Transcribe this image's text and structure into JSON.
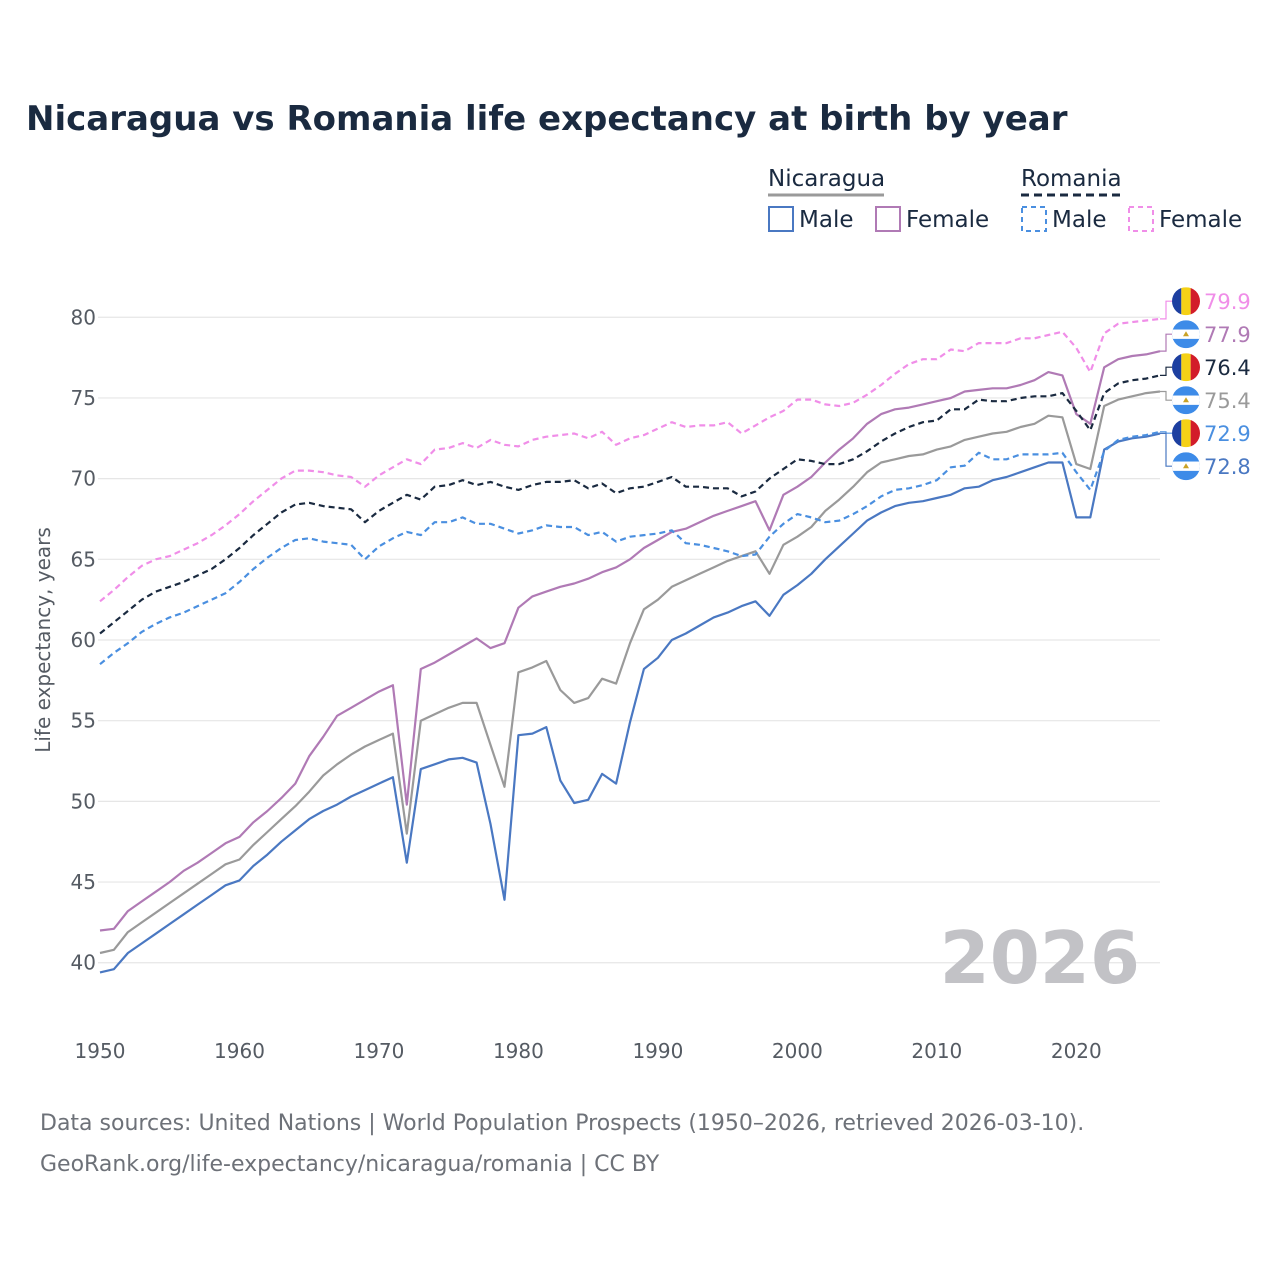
{
  "page_title": "Nicaragua vs Romania life expectancy at birth by year",
  "year_overlay": "2026",
  "footer": {
    "line1": "Data sources: United Nations | World Population Prospects (1950–2026, retrieved 2026-03-10).",
    "line2": "GeoRank.org/life-expectancy/nicaragua/romania | CC BY"
  },
  "legend": {
    "nicaragua_label": "Nicaragua",
    "romania_label": "Romania",
    "male_label": "Male",
    "female_label": "Female"
  },
  "colors": {
    "title": "#1a2a40",
    "nic_total": "#9a9a9a",
    "nic_male": "#4a78c2",
    "nic_female": "#b07ab5",
    "rom_total": "#1a2a40",
    "rom_male": "#4a8fe0",
    "rom_female": "#f08ee8",
    "grid": "#e6e6e6",
    "flag_romania": [
      "#1d3fa0",
      "#f5d116",
      "#d21c2a"
    ],
    "flag_nicaragua": [
      "#3d8be8",
      "#ffffff"
    ]
  },
  "chart_data": {
    "type": "line",
    "title": "Nicaragua vs Romania life expectancy at birth by year",
    "xlabel": "",
    "ylabel": "Life expectancy, years",
    "xlim": [
      1950,
      2026
    ],
    "ylim": [
      38,
      82
    ],
    "xticks": [
      1950,
      1960,
      1970,
      1980,
      1990,
      2000,
      2010,
      2020
    ],
    "yticks": [
      40,
      45,
      50,
      55,
      60,
      65,
      70,
      75,
      80
    ],
    "grid": true,
    "legend_position": "top-right",
    "x": [
      1950,
      1951,
      1952,
      1953,
      1954,
      1955,
      1956,
      1957,
      1958,
      1959,
      1960,
      1961,
      1962,
      1963,
      1964,
      1965,
      1966,
      1967,
      1968,
      1969,
      1970,
      1971,
      1972,
      1973,
      1974,
      1975,
      1976,
      1977,
      1978,
      1979,
      1980,
      1981,
      1982,
      1983,
      1984,
      1985,
      1986,
      1987,
      1988,
      1989,
      1990,
      1991,
      1992,
      1993,
      1994,
      1995,
      1996,
      1997,
      1998,
      1999,
      2000,
      2001,
      2002,
      2003,
      2004,
      2005,
      2006,
      2007,
      2008,
      2009,
      2010,
      2011,
      2012,
      2013,
      2014,
      2015,
      2016,
      2017,
      2018,
      2019,
      2020,
      2021,
      2022,
      2023,
      2024,
      2025,
      2026
    ],
    "series": [
      {
        "name": "Romania Female",
        "country": "Romania",
        "sex": "Female",
        "style": "dashed",
        "color": "#f08ee8",
        "end_label": "79.9",
        "flag": "romania",
        "values": [
          62.4,
          63.1,
          63.9,
          64.6,
          65.0,
          65.2,
          65.6,
          66.0,
          66.5,
          67.1,
          67.8,
          68.6,
          69.3,
          70.0,
          70.5,
          70.5,
          70.4,
          70.2,
          70.1,
          69.5,
          70.2,
          70.7,
          71.2,
          70.9,
          71.8,
          71.9,
          72.2,
          71.9,
          72.4,
          72.1,
          72.0,
          72.4,
          72.6,
          72.7,
          72.8,
          72.5,
          72.9,
          72.1,
          72.5,
          72.7,
          73.1,
          73.5,
          73.2,
          73.3,
          73.3,
          73.5,
          72.8,
          73.3,
          73.8,
          74.2,
          74.9,
          74.9,
          74.6,
          74.5,
          74.7,
          75.2,
          75.8,
          76.5,
          77.1,
          77.4,
          77.4,
          78.0,
          77.9,
          78.4,
          78.4,
          78.4,
          78.7,
          78.7,
          78.9,
          79.1,
          78.1,
          76.6,
          79.0,
          79.6,
          79.7,
          79.8,
          79.9
        ]
      },
      {
        "name": "Nicaragua Female",
        "country": "Nicaragua",
        "sex": "Female",
        "style": "solid",
        "color": "#b07ab5",
        "end_label": "77.9",
        "flag": "nicaragua",
        "values": [
          42.0,
          42.1,
          43.2,
          43.8,
          44.4,
          45.0,
          45.7,
          46.2,
          46.8,
          47.4,
          47.8,
          48.7,
          49.4,
          50.2,
          51.1,
          52.8,
          54.0,
          55.3,
          55.8,
          56.3,
          56.8,
          57.2,
          49.8,
          58.2,
          58.6,
          59.1,
          59.6,
          60.1,
          59.5,
          59.8,
          62.0,
          62.7,
          63.0,
          63.3,
          63.5,
          63.8,
          64.2,
          64.5,
          65.0,
          65.7,
          66.2,
          66.7,
          66.9,
          67.3,
          67.7,
          68.0,
          68.3,
          68.6,
          66.8,
          69.0,
          69.5,
          70.1,
          71.0,
          71.8,
          72.5,
          73.4,
          74.0,
          74.3,
          74.4,
          74.6,
          74.8,
          75.0,
          75.4,
          75.5,
          75.6,
          75.6,
          75.8,
          76.1,
          76.6,
          76.4,
          74.0,
          73.4,
          76.9,
          77.4,
          77.6,
          77.7,
          77.9
        ]
      },
      {
        "name": "Romania",
        "country": "Romania",
        "sex": "Total",
        "style": "dashed",
        "color": "#1a2a40",
        "end_label": "76.4",
        "flag": "romania",
        "values": [
          60.4,
          61.1,
          61.8,
          62.5,
          63.0,
          63.3,
          63.6,
          64.0,
          64.4,
          65.0,
          65.7,
          66.5,
          67.2,
          67.9,
          68.4,
          68.5,
          68.3,
          68.2,
          68.1,
          67.3,
          68.0,
          68.5,
          69.0,
          68.7,
          69.5,
          69.6,
          69.9,
          69.6,
          69.8,
          69.5,
          69.3,
          69.6,
          69.8,
          69.8,
          69.9,
          69.4,
          69.7,
          69.1,
          69.4,
          69.5,
          69.8,
          70.1,
          69.5,
          69.5,
          69.4,
          69.4,
          68.9,
          69.2,
          70.0,
          70.6,
          71.2,
          71.1,
          70.9,
          70.9,
          71.2,
          71.7,
          72.3,
          72.8,
          73.2,
          73.5,
          73.6,
          74.3,
          74.3,
          74.9,
          74.8,
          74.8,
          75.0,
          75.1,
          75.1,
          75.3,
          74.2,
          73.0,
          75.3,
          75.9,
          76.1,
          76.2,
          76.4
        ]
      },
      {
        "name": "Nicaragua",
        "country": "Nicaragua",
        "sex": "Total",
        "style": "solid",
        "color": "#9a9a9a",
        "end_label": "75.4",
        "flag": "nicaragua",
        "values": [
          40.6,
          40.8,
          41.9,
          42.5,
          43.1,
          43.7,
          44.3,
          44.9,
          45.5,
          46.1,
          46.4,
          47.3,
          48.1,
          48.9,
          49.7,
          50.6,
          51.6,
          52.3,
          52.9,
          53.4,
          53.8,
          54.2,
          48.0,
          55.0,
          55.4,
          55.8,
          56.1,
          56.1,
          53.5,
          50.9,
          58.0,
          58.3,
          58.7,
          56.9,
          56.1,
          56.4,
          57.6,
          57.3,
          59.8,
          61.9,
          62.5,
          63.3,
          63.7,
          64.1,
          64.5,
          64.9,
          65.2,
          65.5,
          64.1,
          65.9,
          66.4,
          67.0,
          68.0,
          68.7,
          69.5,
          70.4,
          71.0,
          71.2,
          71.4,
          71.5,
          71.8,
          72.0,
          72.4,
          72.6,
          72.8,
          72.9,
          73.2,
          73.4,
          73.9,
          73.8,
          70.9,
          70.6,
          74.5,
          74.9,
          75.1,
          75.3,
          75.4
        ]
      },
      {
        "name": "Romania Male",
        "country": "Romania",
        "sex": "Male",
        "style": "dashed",
        "color": "#4a8fe0",
        "end_label": "72.9",
        "flag": "romania",
        "values": [
          58.5,
          59.2,
          59.8,
          60.5,
          61.0,
          61.4,
          61.7,
          62.1,
          62.5,
          62.9,
          63.6,
          64.4,
          65.1,
          65.7,
          66.2,
          66.3,
          66.1,
          66.0,
          65.9,
          65.0,
          65.8,
          66.3,
          66.7,
          66.5,
          67.3,
          67.3,
          67.6,
          67.2,
          67.2,
          66.9,
          66.6,
          66.8,
          67.1,
          67.0,
          67.0,
          66.5,
          66.7,
          66.1,
          66.4,
          66.5,
          66.6,
          66.8,
          66.0,
          65.9,
          65.7,
          65.5,
          65.2,
          65.3,
          66.4,
          67.2,
          67.8,
          67.6,
          67.3,
          67.4,
          67.8,
          68.3,
          68.9,
          69.3,
          69.4,
          69.6,
          69.9,
          70.7,
          70.8,
          71.6,
          71.2,
          71.2,
          71.5,
          71.5,
          71.5,
          71.6,
          70.4,
          69.3,
          71.7,
          72.4,
          72.6,
          72.7,
          72.9
        ]
      },
      {
        "name": "Nicaragua Male",
        "country": "Nicaragua",
        "sex": "Male",
        "style": "solid",
        "color": "#4a78c2",
        "end_label": "72.8",
        "flag": "nicaragua",
        "values": [
          39.4,
          39.6,
          40.6,
          41.2,
          41.8,
          42.4,
          43.0,
          43.6,
          44.2,
          44.8,
          45.1,
          46.0,
          46.7,
          47.5,
          48.2,
          48.9,
          49.4,
          49.8,
          50.3,
          50.7,
          51.1,
          51.5,
          46.2,
          52.0,
          52.3,
          52.6,
          52.7,
          52.4,
          48.6,
          43.9,
          54.1,
          54.2,
          54.6,
          51.3,
          49.9,
          50.1,
          51.7,
          51.1,
          54.9,
          58.2,
          58.9,
          60.0,
          60.4,
          60.9,
          61.4,
          61.7,
          62.1,
          62.4,
          61.5,
          62.8,
          63.4,
          64.1,
          65.0,
          65.8,
          66.6,
          67.4,
          67.9,
          68.3,
          68.5,
          68.6,
          68.8,
          69.0,
          69.4,
          69.5,
          69.9,
          70.1,
          70.4,
          70.7,
          71.0,
          71.0,
          67.6,
          67.6,
          71.8,
          72.3,
          72.5,
          72.6,
          72.8
        ]
      }
    ]
  }
}
